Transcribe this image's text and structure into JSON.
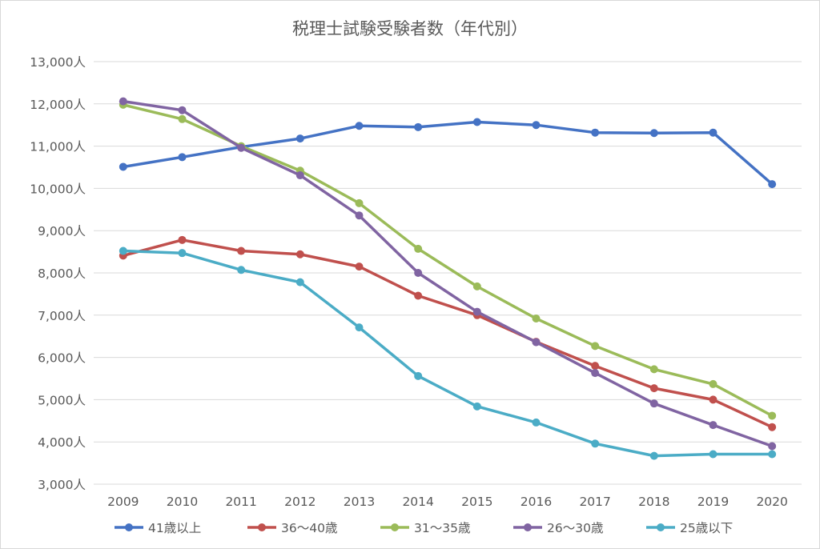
{
  "chart_data": {
    "type": "line",
    "title": "税理士試験受験者数（年代別）",
    "xlabel": "",
    "ylabel": "",
    "categories": [
      "2009",
      "2010",
      "2011",
      "2012",
      "2013",
      "2014",
      "2015",
      "2016",
      "2017",
      "2018",
      "2019",
      "2020"
    ],
    "ylim": [
      3000,
      13000
    ],
    "y_ticks": [
      3000,
      4000,
      5000,
      6000,
      7000,
      8000,
      9000,
      10000,
      11000,
      12000,
      13000
    ],
    "y_tick_labels": [
      "3,000人",
      "4,000人",
      "5,000人",
      "6,000人",
      "7,000人",
      "8,000人",
      "9,000人",
      "10,000人",
      "11,000人",
      "12,000人",
      "13,000人"
    ],
    "grid": true,
    "legend_position": "bottom",
    "series": [
      {
        "name": "41歳以上",
        "color": "#4472c4",
        "values": [
          10510,
          10740,
          10980,
          11180,
          11480,
          11450,
          11570,
          11500,
          11320,
          11310,
          11320,
          10100
        ]
      },
      {
        "name": "36～40歳",
        "color": "#c0504d",
        "values": [
          8410,
          8780,
          8520,
          8440,
          8150,
          7460,
          7000,
          6370,
          5800,
          5270,
          5000,
          4350
        ]
      },
      {
        "name": "31～35歳",
        "color": "#9bbb59",
        "values": [
          11980,
          11640,
          11000,
          10420,
          9650,
          8570,
          7680,
          6920,
          6270,
          5720,
          5370,
          4620
        ]
      },
      {
        "name": "26～30歳",
        "color": "#8064a2",
        "values": [
          12060,
          11850,
          10960,
          10310,
          9360,
          8000,
          7080,
          6360,
          5630,
          4910,
          4400,
          3900
        ]
      },
      {
        "name": "25歳以下",
        "color": "#4bacc6",
        "values": [
          8520,
          8470,
          8070,
          7780,
          6710,
          5560,
          4840,
          4460,
          3960,
          3670,
          3710,
          3710
        ]
      }
    ]
  }
}
